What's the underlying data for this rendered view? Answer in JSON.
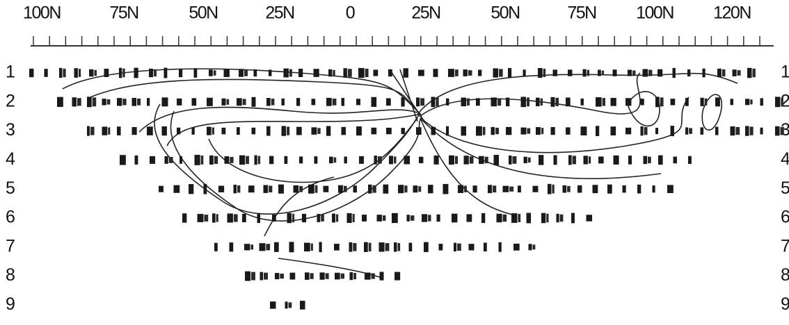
{
  "scale": {
    "labels": [
      "100N",
      "75N",
      "50N",
      "25N",
      "0",
      "25N",
      "50N",
      "75N",
      "100N",
      "120N"
    ]
  },
  "rows": {
    "left": [
      "1",
      "2",
      "3",
      "4",
      "5",
      "6",
      "7",
      "8",
      "9"
    ],
    "right": [
      "1",
      "2",
      "3",
      "4",
      "5",
      "6",
      "7",
      "8",
      "9"
    ]
  }
}
